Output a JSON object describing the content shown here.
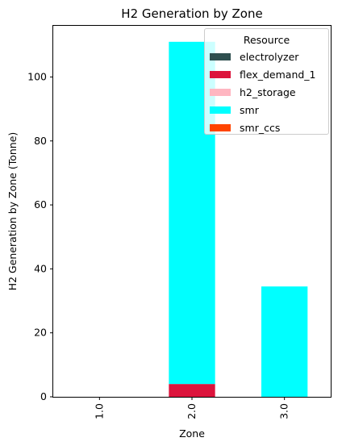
{
  "chart_data": {
    "type": "bar",
    "stacked": true,
    "title": "H2 Generation by Zone",
    "xlabel": "Zone",
    "ylabel": "H2 Generation by Zone (Tonne)",
    "categories": [
      "1.0",
      "2.0",
      "3.0"
    ],
    "ylim": [
      0,
      116
    ],
    "yticks": [
      0,
      20,
      40,
      60,
      80,
      100
    ],
    "legend_title": "Resource",
    "legend_position": "top-right",
    "grid": false,
    "series": [
      {
        "name": "electrolyzer",
        "color": "#2f4f4f",
        "values": [
          0,
          0,
          0
        ]
      },
      {
        "name": "flex_demand_1",
        "color": "#dc143c",
        "values": [
          0,
          4,
          0
        ]
      },
      {
        "name": "h2_storage",
        "color": "#ffb6c1",
        "values": [
          0,
          0,
          0
        ]
      },
      {
        "name": "smr",
        "color": "#00ffff",
        "values": [
          0,
          107,
          34.5
        ]
      },
      {
        "name": "smr_ccs",
        "color": "#ff4500",
        "values": [
          0,
          0,
          0
        ]
      }
    ]
  }
}
